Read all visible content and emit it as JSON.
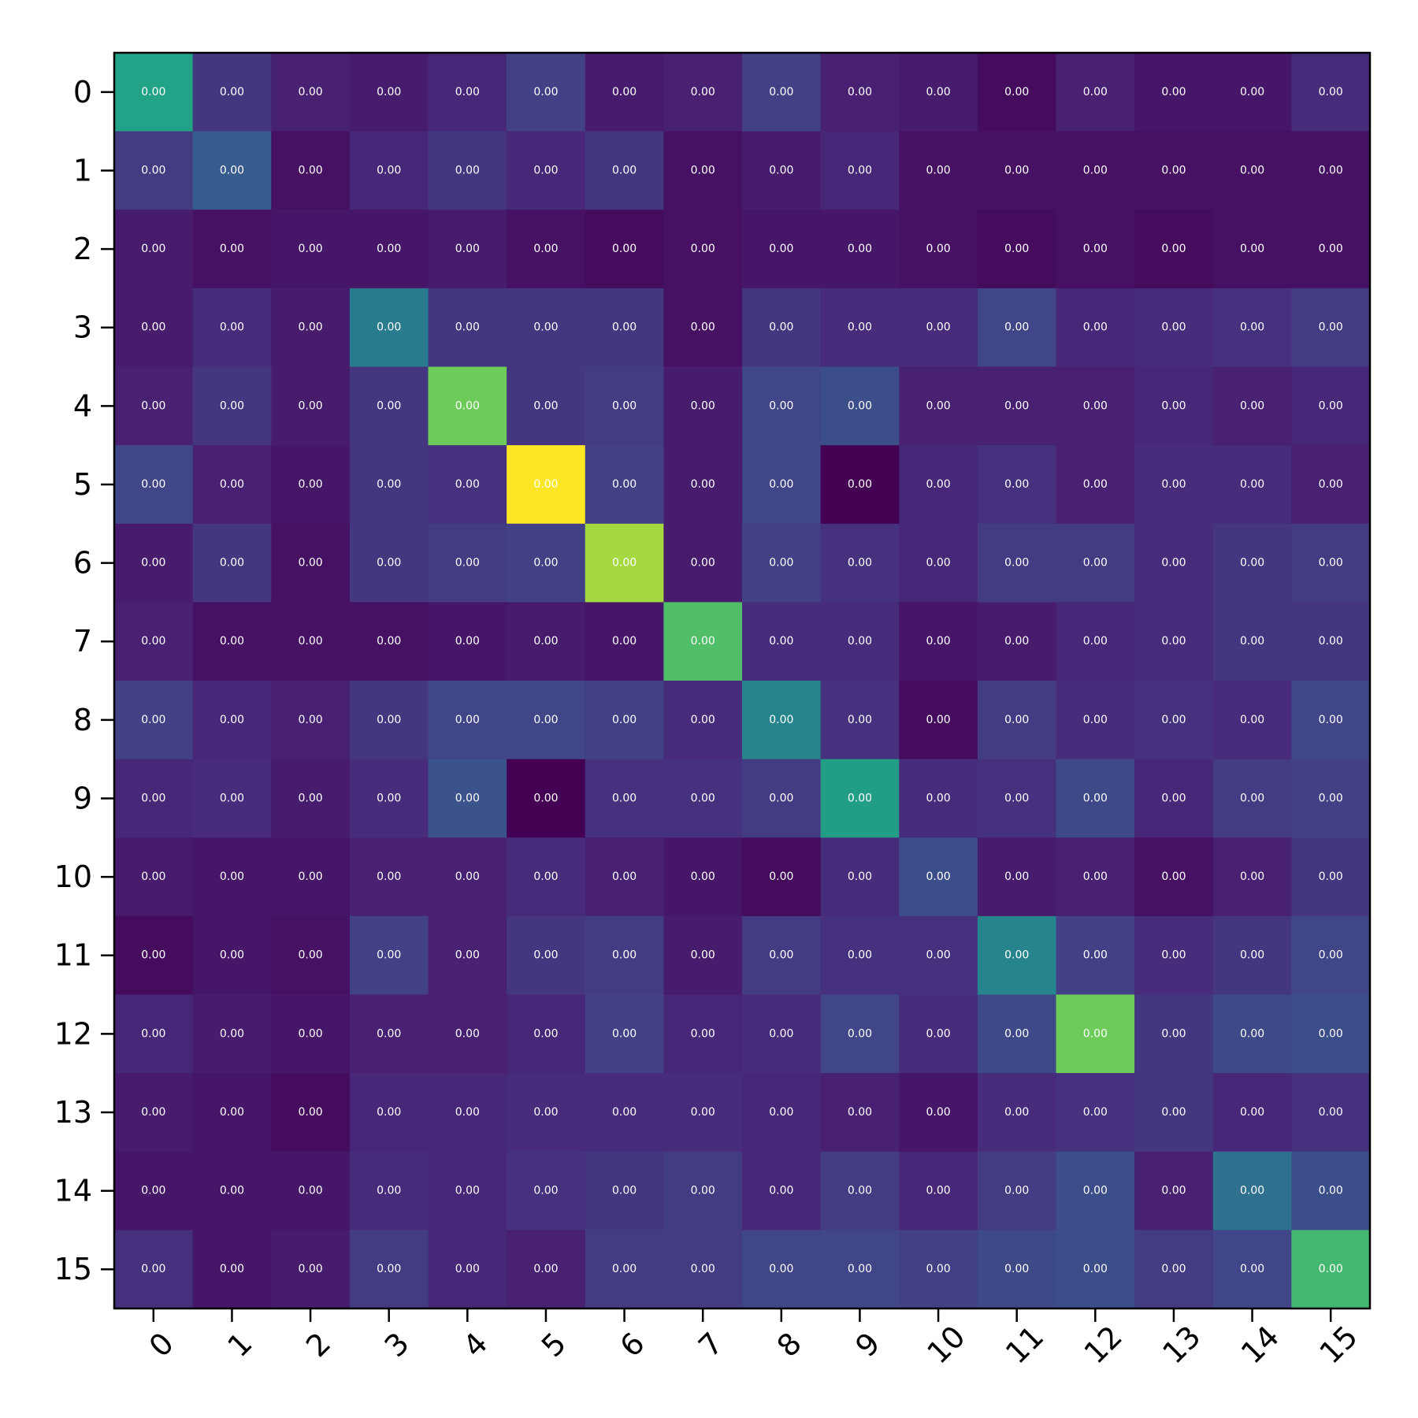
{
  "chart_data": {
    "type": "heatmap",
    "colormap": "viridis",
    "cell_label_format": "0.00",
    "x_categories": [
      "0",
      "1",
      "2",
      "3",
      "4",
      "5",
      "6",
      "7",
      "8",
      "9",
      "10",
      "11",
      "12",
      "13",
      "14",
      "15"
    ],
    "y_categories": [
      "0",
      "1",
      "2",
      "3",
      "4",
      "5",
      "6",
      "7",
      "8",
      "9",
      "10",
      "11",
      "12",
      "13",
      "14",
      "15"
    ],
    "color_intensity": [
      [
        0.72,
        0.2,
        0.12,
        0.1,
        0.14,
        0.24,
        0.1,
        0.12,
        0.24,
        0.12,
        0.1,
        0.04,
        0.12,
        0.08,
        0.08,
        0.16
      ],
      [
        0.22,
        0.36,
        0.06,
        0.14,
        0.2,
        0.14,
        0.2,
        0.06,
        0.1,
        0.14,
        0.06,
        0.06,
        0.06,
        0.06,
        0.06,
        0.06
      ],
      [
        0.1,
        0.06,
        0.08,
        0.08,
        0.1,
        0.06,
        0.04,
        0.06,
        0.08,
        0.08,
        0.06,
        0.04,
        0.06,
        0.04,
        0.06,
        0.06
      ],
      [
        0.1,
        0.16,
        0.1,
        0.52,
        0.2,
        0.2,
        0.2,
        0.06,
        0.2,
        0.16,
        0.16,
        0.26,
        0.14,
        0.16,
        0.18,
        0.22
      ],
      [
        0.12,
        0.2,
        0.1,
        0.2,
        0.86,
        0.2,
        0.22,
        0.1,
        0.26,
        0.3,
        0.12,
        0.12,
        0.12,
        0.14,
        0.12,
        0.14
      ],
      [
        0.26,
        0.12,
        0.08,
        0.2,
        0.18,
        1.0,
        0.24,
        0.1,
        0.26,
        0.0,
        0.14,
        0.18,
        0.12,
        0.16,
        0.16,
        0.12
      ],
      [
        0.1,
        0.2,
        0.06,
        0.2,
        0.22,
        0.24,
        0.92,
        0.1,
        0.24,
        0.18,
        0.14,
        0.22,
        0.22,
        0.16,
        0.2,
        0.22
      ],
      [
        0.12,
        0.06,
        0.06,
        0.06,
        0.08,
        0.1,
        0.08,
        0.82,
        0.16,
        0.16,
        0.08,
        0.1,
        0.14,
        0.16,
        0.2,
        0.2
      ],
      [
        0.24,
        0.14,
        0.12,
        0.2,
        0.26,
        0.26,
        0.24,
        0.16,
        0.56,
        0.18,
        0.04,
        0.22,
        0.16,
        0.18,
        0.16,
        0.26
      ],
      [
        0.14,
        0.16,
        0.1,
        0.16,
        0.32,
        0.0,
        0.18,
        0.18,
        0.22,
        0.7,
        0.16,
        0.18,
        0.28,
        0.14,
        0.22,
        0.24
      ],
      [
        0.1,
        0.08,
        0.08,
        0.12,
        0.12,
        0.16,
        0.12,
        0.08,
        0.04,
        0.16,
        0.3,
        0.1,
        0.12,
        0.06,
        0.12,
        0.2
      ],
      [
        0.04,
        0.08,
        0.06,
        0.24,
        0.12,
        0.2,
        0.22,
        0.1,
        0.22,
        0.18,
        0.18,
        0.56,
        0.24,
        0.16,
        0.2,
        0.26
      ],
      [
        0.14,
        0.1,
        0.08,
        0.12,
        0.12,
        0.14,
        0.24,
        0.14,
        0.16,
        0.26,
        0.16,
        0.28,
        0.86,
        0.2,
        0.28,
        0.3
      ],
      [
        0.1,
        0.08,
        0.04,
        0.14,
        0.14,
        0.16,
        0.16,
        0.16,
        0.14,
        0.12,
        0.08,
        0.16,
        0.18,
        0.2,
        0.14,
        0.18
      ],
      [
        0.08,
        0.08,
        0.08,
        0.16,
        0.14,
        0.18,
        0.2,
        0.22,
        0.14,
        0.22,
        0.14,
        0.22,
        0.3,
        0.12,
        0.46,
        0.3
      ],
      [
        0.18,
        0.08,
        0.1,
        0.22,
        0.14,
        0.12,
        0.22,
        0.22,
        0.26,
        0.26,
        0.24,
        0.28,
        0.3,
        0.22,
        0.26,
        0.8
      ]
    ],
    "cell_labels": [
      [
        "0.00",
        "0.00",
        "0.00",
        "0.00",
        "0.00",
        "0.00",
        "0.00",
        "0.00",
        "0.00",
        "0.00",
        "0.00",
        "0.00",
        "0.00",
        "0.00",
        "0.00",
        "0.00"
      ],
      [
        "0.00",
        "0.00",
        "0.00",
        "0.00",
        "0.00",
        "0.00",
        "0.00",
        "0.00",
        "0.00",
        "0.00",
        "0.00",
        "0.00",
        "0.00",
        "0.00",
        "0.00",
        "0.00"
      ],
      [
        "0.00",
        "0.00",
        "0.00",
        "0.00",
        "0.00",
        "0.00",
        "0.00",
        "0.00",
        "0.00",
        "0.00",
        "0.00",
        "0.00",
        "0.00",
        "0.00",
        "0.00",
        "0.00"
      ],
      [
        "0.00",
        "0.00",
        "0.00",
        "0.00",
        "0.00",
        "0.00",
        "0.00",
        "0.00",
        "0.00",
        "0.00",
        "0.00",
        "0.00",
        "0.00",
        "0.00",
        "0.00",
        "0.00"
      ],
      [
        "0.00",
        "0.00",
        "0.00",
        "0.00",
        "0.00",
        "0.00",
        "0.00",
        "0.00",
        "0.00",
        "0.00",
        "0.00",
        "0.00",
        "0.00",
        "0.00",
        "0.00",
        "0.00"
      ],
      [
        "0.00",
        "0.00",
        "0.00",
        "0.00",
        "0.00",
        "0.00",
        "0.00",
        "0.00",
        "0.00",
        "0.00",
        "0.00",
        "0.00",
        "0.00",
        "0.00",
        "0.00",
        "0.00"
      ],
      [
        "0.00",
        "0.00",
        "0.00",
        "0.00",
        "0.00",
        "0.00",
        "0.00",
        "0.00",
        "0.00",
        "0.00",
        "0.00",
        "0.00",
        "0.00",
        "0.00",
        "0.00",
        "0.00"
      ],
      [
        "0.00",
        "0.00",
        "0.00",
        "0.00",
        "0.00",
        "0.00",
        "0.00",
        "0.00",
        "0.00",
        "0.00",
        "0.00",
        "0.00",
        "0.00",
        "0.00",
        "0.00",
        "0.00"
      ],
      [
        "0.00",
        "0.00",
        "0.00",
        "0.00",
        "0.00",
        "0.00",
        "0.00",
        "0.00",
        "0.00",
        "0.00",
        "0.00",
        "0.00",
        "0.00",
        "0.00",
        "0.00",
        "0.00"
      ],
      [
        "0.00",
        "0.00",
        "0.00",
        "0.00",
        "0.00",
        "0.00",
        "0.00",
        "0.00",
        "0.00",
        "0.00",
        "0.00",
        "0.00",
        "0.00",
        "0.00",
        "0.00",
        "0.00"
      ],
      [
        "0.00",
        "0.00",
        "0.00",
        "0.00",
        "0.00",
        "0.00",
        "0.00",
        "0.00",
        "0.00",
        "0.00",
        "0.00",
        "0.00",
        "0.00",
        "0.00",
        "0.00",
        "0.00"
      ],
      [
        "0.00",
        "0.00",
        "0.00",
        "0.00",
        "0.00",
        "0.00",
        "0.00",
        "0.00",
        "0.00",
        "0.00",
        "0.00",
        "0.00",
        "0.00",
        "0.00",
        "0.00",
        "0.00"
      ],
      [
        "0.00",
        "0.00",
        "0.00",
        "0.00",
        "0.00",
        "0.00",
        "0.00",
        "0.00",
        "0.00",
        "0.00",
        "0.00",
        "0.00",
        "0.00",
        "0.00",
        "0.00",
        "0.00"
      ],
      [
        "0.00",
        "0.00",
        "0.00",
        "0.00",
        "0.00",
        "0.00",
        "0.00",
        "0.00",
        "0.00",
        "0.00",
        "0.00",
        "0.00",
        "0.00",
        "0.00",
        "0.00",
        "0.00"
      ],
      [
        "0.00",
        "0.00",
        "0.00",
        "0.00",
        "0.00",
        "0.00",
        "0.00",
        "0.00",
        "0.00",
        "0.00",
        "0.00",
        "0.00",
        "0.00",
        "0.00",
        "0.00",
        "0.00"
      ],
      [
        "0.00",
        "0.00",
        "0.00",
        "0.00",
        "0.00",
        "0.00",
        "0.00",
        "0.00",
        "0.00",
        "0.00",
        "0.00",
        "0.00",
        "0.00",
        "0.00",
        "0.00",
        "0.00"
      ]
    ],
    "title": "",
    "xlabel": "",
    "ylabel": "",
    "x_tick_rotation_deg": 45,
    "grid": false,
    "legend": "none"
  }
}
